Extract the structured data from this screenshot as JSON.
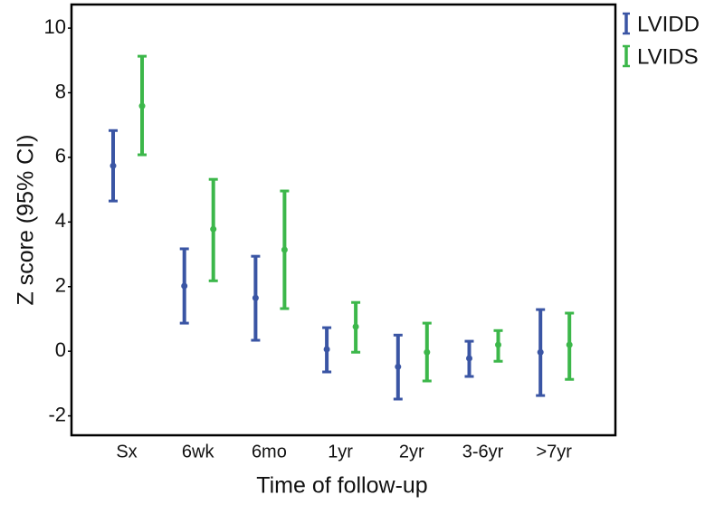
{
  "chart_data": {
    "type": "errorbar",
    "x_label": "Time of follow-up",
    "y_label": "Z score (95% CI)",
    "categories": [
      "Sx",
      "6wk",
      "6mo",
      "1yr",
      "2yr",
      "3-6yr",
      ">7yr"
    ],
    "series": [
      {
        "name": "LVIDD",
        "color": "#3a55a4",
        "values": [
          5.74,
          2.02,
          1.65,
          0.06,
          -0.48,
          -0.22,
          -0.03
        ],
        "upper": [
          6.83,
          3.17,
          2.94,
          0.73,
          0.5,
          0.31,
          1.29
        ],
        "lower": [
          4.65,
          0.87,
          0.34,
          -0.64,
          -1.48,
          -0.78,
          -1.37
        ]
      },
      {
        "name": "LVIDS",
        "color": "#3cb74a",
        "values": [
          7.59,
          3.78,
          3.14,
          0.76,
          -0.03,
          0.2,
          0.2
        ],
        "upper": [
          9.13,
          5.32,
          4.96,
          1.51,
          0.87,
          0.64,
          1.18
        ],
        "lower": [
          6.08,
          2.18,
          1.32,
          -0.03,
          -0.92,
          -0.31,
          -0.87
        ]
      }
    ],
    "ylim": [
      -2.6,
      10.73
    ],
    "yticks": [
      -2,
      0,
      2,
      4,
      6,
      8,
      10
    ],
    "legend": "outside-top-right"
  }
}
